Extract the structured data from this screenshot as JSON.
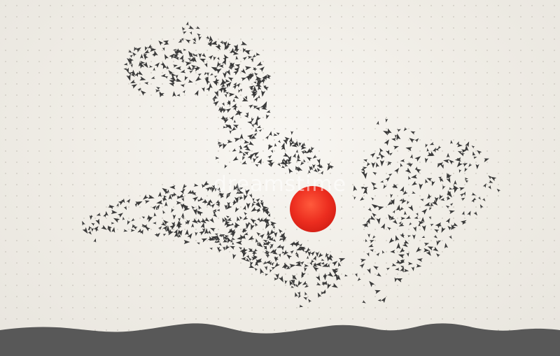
{
  "image": {
    "subject": "flock-of-birds-around-sun",
    "colors": {
      "background": "#efece5",
      "dot_grid": "#c9c5bc",
      "birds": "#3a3a3a",
      "sun": "#ec2d1f",
      "hills": "#585858"
    }
  }
}
